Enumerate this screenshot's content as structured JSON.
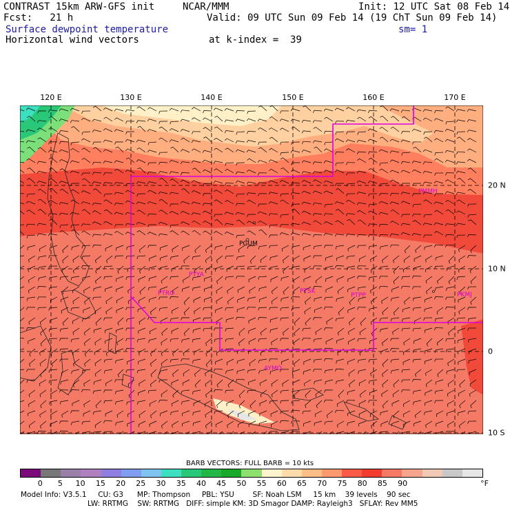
{
  "header": {
    "model": "CONTRAST 15km ARW-GFS init",
    "org": "NCAR/MMM",
    "init": "Init: 12 UTC Sat 08 Feb 14",
    "fcst": "Fcst:   21 h",
    "valid": "Valid: 09 UTC Sun 09 Feb 14 (19 ChT Sun 09 Feb 14)",
    "field1": "Surface dewpoint temperature",
    "smooth": "sm= 1",
    "field2": "Horizontal wind vectors",
    "kindex": "at k-index =  39"
  },
  "map": {
    "lon_labels": [
      "120 E",
      "130 E",
      "140 E",
      "150 E",
      "160 E",
      "170 E"
    ],
    "lat_labels": [
      "20 N",
      "10 N",
      "0",
      "10 S"
    ],
    "stations": [
      "PGUM",
      "PTYA",
      "PTRO",
      "PTSK",
      "PTPP",
      "PKMJ",
      "PMMH",
      "AYMO"
    ]
  },
  "legend": {
    "barb_caption": "BARB VECTORS:  FULL BARB = 10 kts",
    "ticks": [
      "0",
      "5",
      "10",
      "15",
      "20",
      "25",
      "30",
      "35",
      "40",
      "45",
      "50",
      "55",
      "60",
      "65",
      "70",
      "75",
      "80",
      "85",
      "90"
    ],
    "unit": "°F",
    "colors": [
      "#7a0a7a",
      "#777777",
      "#9a7fa8",
      "#b07fc2",
      "#8e7fe0",
      "#7f9ef0",
      "#7fc3f0",
      "#3ce0c0",
      "#28c878",
      "#22b848",
      "#1aa82a",
      "#8ee06e",
      "#fff5cc",
      "#ffdcaa",
      "#ffbe88",
      "#ff9a70",
      "#ff5a48",
      "#f23c30",
      "#f57a66",
      "#f5a58c",
      "#f0c8b4",
      "#c8c8c8",
      "#e6e6e6"
    ]
  },
  "footer": {
    "line1": "Model Info: V3.5.1     CU: G3      MP: Thompson     PBL: YSU        SF: Noah LSM     15 km    39 levels    90 sec",
    "line2": "LW: RRTMG    SW: RRTMG   DIFF: simple KM: 3D Smagor DAMP: Rayleigh3   SFLAY: Rev MM5"
  }
}
